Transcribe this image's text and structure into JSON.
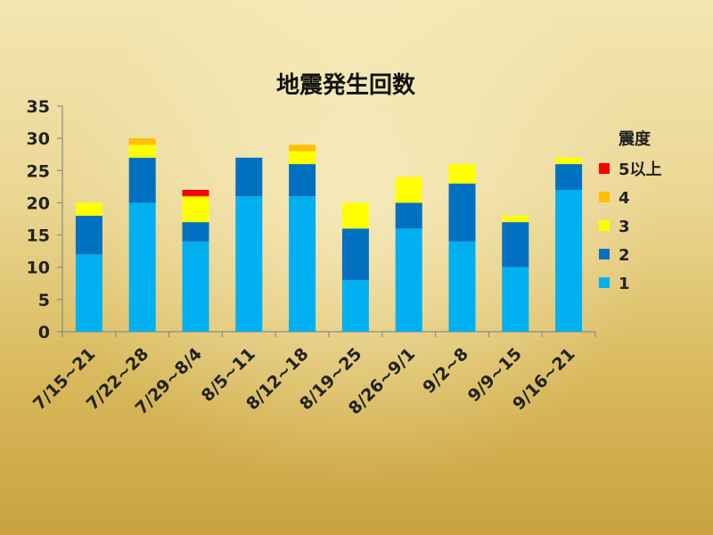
{
  "chart_data": {
    "type": "bar",
    "stacked": true,
    "title": "地震発生回数",
    "categories": [
      "7/15~21",
      "7/22~28",
      "7/29~8/4",
      "8/5~11",
      "8/12~18",
      "8/19~25",
      "8/26~9/1",
      "9/2~8",
      "9/9~15",
      "9/16~21"
    ],
    "series": [
      {
        "name": "1",
        "color": "#00b0f0",
        "values": [
          12,
          20,
          14,
          21,
          21,
          8,
          16,
          14,
          10,
          22
        ]
      },
      {
        "name": "2",
        "color": "#0070c0",
        "values": [
          6,
          7,
          3,
          6,
          5,
          8,
          4,
          9,
          7,
          4
        ]
      },
      {
        "name": "3",
        "color": "#ffff00",
        "values": [
          2,
          2,
          4,
          0,
          2,
          4,
          4,
          3,
          1,
          1
        ]
      },
      {
        "name": "4",
        "color": "#ffc000",
        "values": [
          0,
          1,
          0,
          0,
          1,
          0,
          0,
          0,
          0,
          0
        ]
      },
      {
        "name": "5以上",
        "color": "#ff0000",
        "values": [
          0,
          0,
          1,
          0,
          0,
          0,
          0,
          0,
          0,
          0
        ]
      }
    ],
    "legend_title": "震度",
    "legend_position": "right",
    "ylim": [
      0,
      35
    ],
    "yticks": [
      "0",
      "5",
      "10",
      "15",
      "20",
      "25",
      "30",
      "35"
    ],
    "grid": false
  }
}
